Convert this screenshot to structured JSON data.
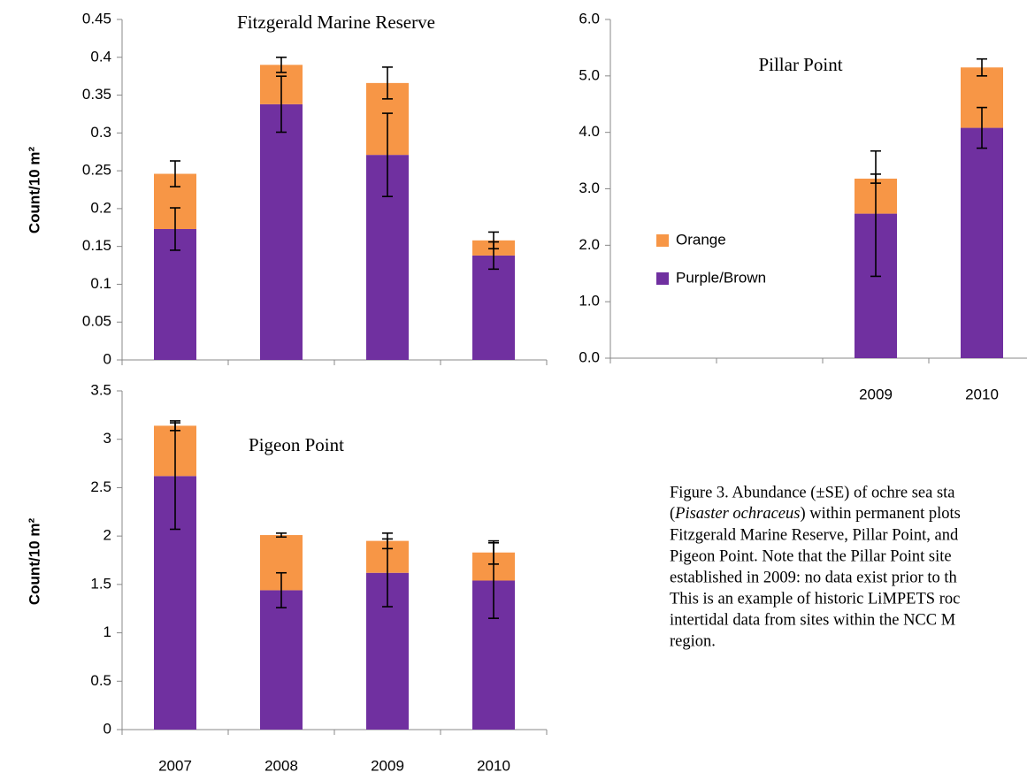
{
  "chart_data": [
    {
      "type": "bar",
      "stacked": true,
      "title": "Fitzgerald Marine Reserve",
      "y_label": "Count/10 m²",
      "categories": [
        null,
        null,
        null,
        null
      ],
      "ylim": [
        0,
        0.45
      ],
      "yticks": [
        0,
        0.05,
        0.1,
        0.15,
        0.2,
        0.25,
        0.3,
        0.35,
        0.4,
        0.45
      ],
      "legend": false,
      "series": [
        {
          "name": "Purple/Brown",
          "color": "#7030a0",
          "values": [
            0.173,
            0.338,
            0.271,
            0.138
          ],
          "errors": [
            0.028,
            0.037,
            0.055,
            0.018
          ]
        },
        {
          "name": "Orange",
          "color": "#f79646",
          "values": [
            0.073,
            0.052,
            0.095,
            0.02
          ],
          "errors": [
            0.017,
            0.01,
            0.021,
            0.011
          ]
        }
      ]
    },
    {
      "type": "bar",
      "stacked": true,
      "title": "Pillar Point",
      "categories": [
        null,
        null,
        "2009",
        "2010"
      ],
      "ylim": [
        0,
        6
      ],
      "yticks": [
        {
          "value": 0,
          "label": "0.0"
        },
        {
          "value": 1,
          "label": "1.0"
        },
        {
          "value": 2,
          "label": "2.0"
        },
        {
          "value": 3,
          "label": "3.0"
        },
        {
          "value": 4,
          "label": "4.0"
        },
        {
          "value": 5,
          "label": "5.0"
        },
        {
          "value": 6,
          "label": "6.0"
        }
      ],
      "legend": true,
      "legend_position": "left",
      "series": [
        {
          "name": "Purple/Brown",
          "color": "#7030a0",
          "values": [
            null,
            null,
            2.56,
            4.08
          ],
          "errors": [
            null,
            null,
            1.11,
            0.36
          ]
        },
        {
          "name": "Orange",
          "color": "#f79646",
          "values": [
            null,
            null,
            0.62,
            1.07
          ],
          "errors": [
            null,
            null,
            0.08,
            0.15
          ]
        }
      ]
    },
    {
      "type": "bar",
      "stacked": true,
      "title": "Pigeon Point",
      "y_label": "Count/10 m²",
      "categories": [
        "2007",
        "2008",
        "2009",
        "2010"
      ],
      "ylim": [
        0,
        3.5
      ],
      "yticks": [
        0,
        0.5,
        1,
        1.5,
        2,
        2.5,
        3,
        3.5
      ],
      "legend": false,
      "series": [
        {
          "name": "Purple/Brown",
          "color": "#7030a0",
          "values": [
            2.62,
            1.44,
            1.62,
            1.54
          ],
          "errors": [
            0.55,
            0.18,
            0.35,
            0.39
          ]
        },
        {
          "name": "Orange",
          "color": "#f79646",
          "values": [
            0.52,
            0.57,
            0.33,
            0.29
          ],
          "errors": [
            0.05,
            0.02,
            0.08,
            0.12
          ]
        }
      ]
    }
  ],
  "caption": {
    "line1": "Figure 3. Abundance (±SE) of ochre sea sta",
    "line2_before": "(",
    "line2_italic": "Pisaster ochraceus",
    "line2_after": ") within permanent plots",
    "line3": "Fitzgerald Marine Reserve, Pillar Point, and",
    "line4": "Pigeon Point. Note that the Pillar Point site",
    "line5": "established in 2009: no data exist prior to th",
    "line6": "This is an example of historic LiMPETS roc",
    "line7": "intertidal data from sites within the NCC M",
    "line8": "region."
  }
}
